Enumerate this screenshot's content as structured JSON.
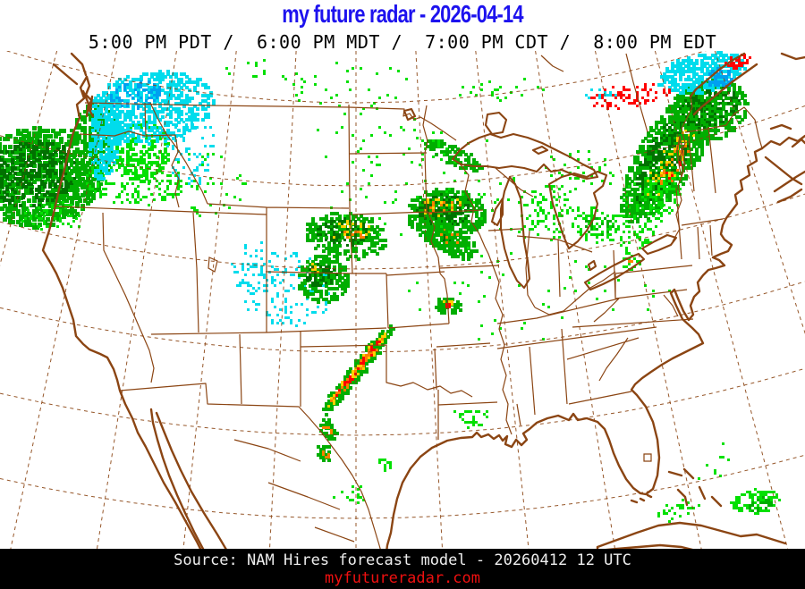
{
  "header": {
    "title": "my future radar - 2026-04-14",
    "times": "5:00 PM PDT /  6:00 PM MDT /  7:00 PM CDT /  8:00 PM EDT"
  },
  "footer": {
    "source": "Source: NAM Hires forecast model - 20260412 12 UTC",
    "site": "myfutureradar.com"
  },
  "colors": {
    "title_text": "#1d12ee",
    "subtitle_text": "#000000",
    "map_lines": "#8b4513",
    "background": "#ffffff",
    "footer_bg": "#000000",
    "footer_text": "#eeeeee",
    "site_text": "#ee1010"
  },
  "radar": {
    "palette": {
      "g1": "#02e002",
      "g2": "#01ae01",
      "g3": "#017101",
      "y": "#ffd000",
      "o": "#ff8000",
      "r": "#ff0000",
      "c1": "#00dcec",
      "c2": "#00a0f0"
    },
    "palette_meaning": {
      "g1": "light rain",
      "g2": "moderate rain",
      "g3": "heavy rain",
      "y": "very heavy rain",
      "o": "intense",
      "r": "extreme / mixed",
      "c1": "snow light",
      "c2": "snow moderate"
    },
    "cell_format": [
      "color",
      "cx",
      "cy",
      "rx",
      "ry",
      "rot_deg",
      "count",
      "pixel_size"
    ],
    "cells": [
      [
        "g2",
        40,
        196,
        72,
        55,
        -8,
        850,
        5
      ],
      [
        "g3",
        34,
        192,
        52,
        36,
        -12,
        300,
        4
      ],
      [
        "g2",
        100,
        165,
        26,
        55,
        12,
        300,
        4
      ],
      [
        "g1",
        158,
        168,
        30,
        34,
        0,
        200,
        4
      ],
      [
        "g1",
        148,
        202,
        55,
        26,
        5,
        130,
        3
      ],
      [
        "c1",
        168,
        118,
        70,
        40,
        -8,
        600,
        4
      ],
      [
        "c1",
        117,
        150,
        17,
        50,
        8,
        260,
        4
      ],
      [
        "c2",
        150,
        105,
        30,
        15,
        -10,
        70,
        3
      ],
      [
        "c1",
        213,
        165,
        28,
        42,
        0,
        70,
        3
      ],
      [
        "g1",
        230,
        205,
        45,
        38,
        0,
        45,
        3
      ],
      [
        "g1",
        60,
        240,
        40,
        16,
        0,
        55,
        3
      ],
      [
        "c1",
        320,
        322,
        52,
        42,
        0,
        120,
        3
      ],
      [
        "c1",
        284,
        300,
        28,
        32,
        0,
        55,
        3
      ],
      [
        "g2",
        360,
        310,
        30,
        26,
        0,
        200,
        4
      ],
      [
        "g3",
        358,
        306,
        17,
        13,
        0,
        55,
        3
      ],
      [
        "y",
        352,
        300,
        9,
        5,
        0,
        7,
        3
      ],
      [
        "g2",
        385,
        262,
        46,
        26,
        8,
        270,
        4
      ],
      [
        "g3",
        383,
        258,
        30,
        15,
        0,
        85,
        3
      ],
      [
        "y",
        390,
        256,
        24,
        11,
        0,
        20,
        3
      ],
      [
        "o",
        396,
        260,
        15,
        6,
        0,
        8,
        3
      ],
      [
        "g2",
        490,
        257,
        28,
        18,
        35,
        130,
        4
      ],
      [
        "g3",
        492,
        255,
        17,
        11,
        35,
        38,
        3
      ],
      [
        "o",
        494,
        252,
        9,
        5,
        0,
        5,
        3
      ],
      [
        "g2",
        505,
        172,
        36,
        10,
        25,
        100,
        4
      ],
      [
        "g2",
        497,
        237,
        45,
        27,
        0,
        400,
        4
      ],
      [
        "g3",
        495,
        233,
        32,
        17,
        0,
        125,
        3
      ],
      [
        "y",
        492,
        230,
        25,
        11,
        0,
        18,
        3
      ],
      [
        "o",
        494,
        232,
        19,
        8,
        0,
        11,
        3
      ],
      [
        "g2",
        503,
        267,
        31,
        16,
        30,
        120,
        4
      ],
      [
        "o",
        505,
        268,
        17,
        8,
        30,
        6,
        3
      ],
      [
        "g1",
        470,
        205,
        115,
        65,
        0,
        65,
        3
      ],
      [
        "g1",
        430,
        155,
        80,
        40,
        0,
        32,
        3
      ],
      [
        "g1",
        610,
        237,
        36,
        30,
        0,
        90,
        3
      ],
      [
        "g1",
        670,
        250,
        28,
        20,
        0,
        70,
        3
      ],
      [
        "g2",
        668,
        250,
        16,
        11,
        0,
        26,
        3
      ],
      [
        "g1",
        645,
        190,
        42,
        24,
        0,
        35,
        3
      ],
      [
        "g1",
        560,
        320,
        105,
        70,
        0,
        42,
        3
      ],
      [
        "g2",
        398,
        412,
        64,
        8,
        -52,
        250,
        4
      ],
      [
        "y",
        398,
        412,
        56,
        5,
        -52,
        65,
        3
      ],
      [
        "o",
        398,
        412,
        50,
        3.5,
        -52,
        42,
        3
      ],
      [
        "r",
        398,
        412,
        45,
        2.5,
        -52,
        26,
        3
      ],
      [
        "g2",
        500,
        340,
        14,
        9,
        0,
        55,
        4
      ],
      [
        "y",
        500,
        339,
        8,
        5,
        0,
        9,
        3
      ],
      [
        "r",
        501,
        340,
        5,
        3,
        0,
        5,
        3
      ],
      [
        "g2",
        366,
        479,
        8,
        13,
        -35,
        32,
        4
      ],
      [
        "o",
        366,
        478,
        4,
        7,
        -35,
        7,
        3
      ],
      [
        "g2",
        362,
        506,
        7,
        11,
        -30,
        26,
        4
      ],
      [
        "o",
        362,
        505,
        3,
        6,
        -30,
        5,
        3
      ],
      [
        "g1",
        428,
        518,
        7,
        7,
        0,
        15,
        3
      ],
      [
        "g1",
        390,
        552,
        18,
        11,
        0,
        16,
        3
      ],
      [
        "g1",
        525,
        465,
        20,
        12,
        0,
        26,
        3
      ],
      [
        "g2",
        746,
        170,
        88,
        32,
        -58,
        950,
        4
      ],
      [
        "g3",
        748,
        166,
        70,
        21,
        -58,
        300,
        3
      ],
      [
        "y",
        747,
        182,
        44,
        15,
        -58,
        48,
        3
      ],
      [
        "o",
        749,
        186,
        31,
        10,
        -58,
        20,
        3
      ],
      [
        "r",
        750,
        188,
        20,
        6,
        -58,
        6,
        3
      ],
      [
        "g2",
        790,
        122,
        46,
        34,
        -20,
        360,
        4
      ],
      [
        "g3",
        792,
        118,
        33,
        23,
        -20,
        100,
        3
      ],
      [
        "c1",
        782,
        80,
        50,
        21,
        -14,
        340,
        4
      ],
      [
        "c2",
        802,
        86,
        15,
        10,
        0,
        42,
        4
      ],
      [
        "r",
        824,
        67,
        15,
        7,
        -20,
        32,
        3
      ],
      [
        "r",
        703,
        106,
        46,
        13,
        -8,
        75,
        3
      ],
      [
        "c1",
        672,
        104,
        19,
        6,
        0,
        12,
        3
      ],
      [
        "g1",
        714,
        238,
        25,
        45,
        15,
        120,
        3
      ],
      [
        "g1",
        704,
        292,
        12,
        10,
        0,
        18,
        3
      ],
      [
        "o",
        704,
        290,
        4,
        3,
        0,
        3,
        3
      ],
      [
        "g1",
        745,
        215,
        15,
        26,
        10,
        45,
        3
      ],
      [
        "g1",
        700,
        322,
        55,
        35,
        0,
        12,
        3
      ],
      [
        "g1",
        843,
        560,
        28,
        14,
        -10,
        100,
        3
      ],
      [
        "g2",
        848,
        562,
        15,
        8,
        -10,
        26,
        3
      ],
      [
        "g1",
        757,
        569,
        24,
        11,
        -20,
        34,
        3
      ],
      [
        "g1",
        798,
        520,
        20,
        28,
        0,
        9,
        3
      ],
      [
        "g1",
        390,
        95,
        80,
        28,
        0,
        30,
        3
      ],
      [
        "g1",
        560,
        100,
        48,
        16,
        0,
        22,
        3
      ],
      [
        "g1",
        300,
        82,
        55,
        18,
        0,
        16,
        3
      ]
    ]
  }
}
